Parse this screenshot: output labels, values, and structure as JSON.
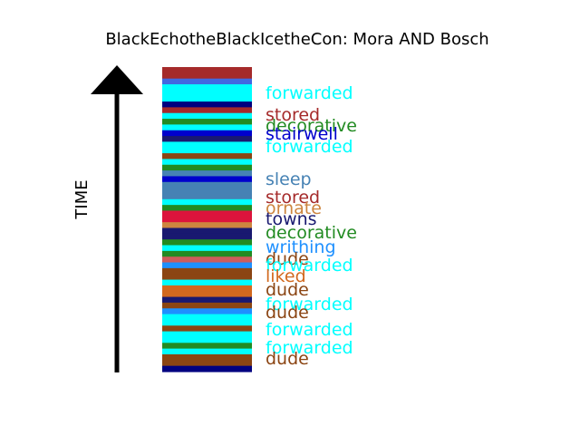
{
  "chart_data": {
    "type": "timeline-strip",
    "title": "BlackEchotheBlackIcetheCon: Mora AND Bosch",
    "ylabel": "TIME",
    "bands": [
      {
        "color": "#a52a2a"
      },
      {
        "color": "#a52a2a"
      },
      {
        "color": "#4169e1"
      },
      {
        "color": "#00ffff"
      },
      {
        "color": "#00ffff"
      },
      {
        "color": "#00ffff"
      },
      {
        "color": "#000080"
      },
      {
        "color": "#a52a2a"
      },
      {
        "color": "#00ffff"
      },
      {
        "color": "#228b22"
      },
      {
        "color": "#00ffff"
      },
      {
        "color": "#0000cd"
      },
      {
        "color": "#191970"
      },
      {
        "color": "#00ffff"
      },
      {
        "color": "#00ffff"
      },
      {
        "color": "#8b4513"
      },
      {
        "color": "#00ffff"
      },
      {
        "color": "#228b22"
      },
      {
        "color": "#4682b4"
      },
      {
        "color": "#0000cd"
      },
      {
        "color": "#4682b4"
      },
      {
        "color": "#4682b4"
      },
      {
        "color": "#4682b4"
      },
      {
        "color": "#00ffff"
      },
      {
        "color": "#228b22"
      },
      {
        "color": "#dc143c"
      },
      {
        "color": "#dc143c"
      },
      {
        "color": "#cd853f"
      },
      {
        "color": "#191970"
      },
      {
        "color": "#191970"
      },
      {
        "color": "#228b22"
      },
      {
        "color": "#00ffff"
      },
      {
        "color": "#228b22"
      },
      {
        "color": "#cd5c5c"
      },
      {
        "color": "#1e90ff"
      },
      {
        "color": "#8b4513"
      },
      {
        "color": "#8b4513"
      },
      {
        "color": "#00ffff"
      },
      {
        "color": "#d2691e"
      },
      {
        "color": "#d2691e"
      },
      {
        "color": "#191970"
      },
      {
        "color": "#8b4513"
      },
      {
        "color": "#1e90ff"
      },
      {
        "color": "#00ffff"
      },
      {
        "color": "#00ffff"
      },
      {
        "color": "#8b4513"
      },
      {
        "color": "#00ffff"
      },
      {
        "color": "#00ffff"
      },
      {
        "color": "#228b22"
      },
      {
        "color": "#00ffff"
      },
      {
        "color": "#8b4513"
      },
      {
        "color": "#8b4513"
      },
      {
        "color": "#000080"
      }
    ],
    "labels": [
      {
        "text": "forwarded",
        "color": "#00ffff"
      },
      {
        "text": "stored",
        "color": "#a52a2a"
      },
      {
        "text": "decorative",
        "color": "#228b22"
      },
      {
        "text": "stairwell",
        "color": "#0000cd"
      },
      {
        "text": "forwarded",
        "color": "#00ffff"
      },
      {
        "text": "sleep",
        "color": "#4682b4"
      },
      {
        "text": "stored",
        "color": "#a52a2a"
      },
      {
        "text": "ornate",
        "color": "#cd853f"
      },
      {
        "text": "towns",
        "color": "#191970"
      },
      {
        "text": "decorative",
        "color": "#228b22"
      },
      {
        "text": "writhing",
        "color": "#1e90ff"
      },
      {
        "text": "dude",
        "color": "#8b4513"
      },
      {
        "text": "forwarded",
        "color": "#00ffff"
      },
      {
        "text": "liked",
        "color": "#d2691e"
      },
      {
        "text": "dude",
        "color": "#8b4513"
      },
      {
        "text": "forwarded",
        "color": "#00ffff"
      },
      {
        "text": "dude",
        "color": "#8b4513"
      },
      {
        "text": "forwarded",
        "color": "#00ffff"
      },
      {
        "text": "forwarded",
        "color": "#00ffff"
      },
      {
        "text": "dude",
        "color": "#8b4513"
      }
    ]
  }
}
